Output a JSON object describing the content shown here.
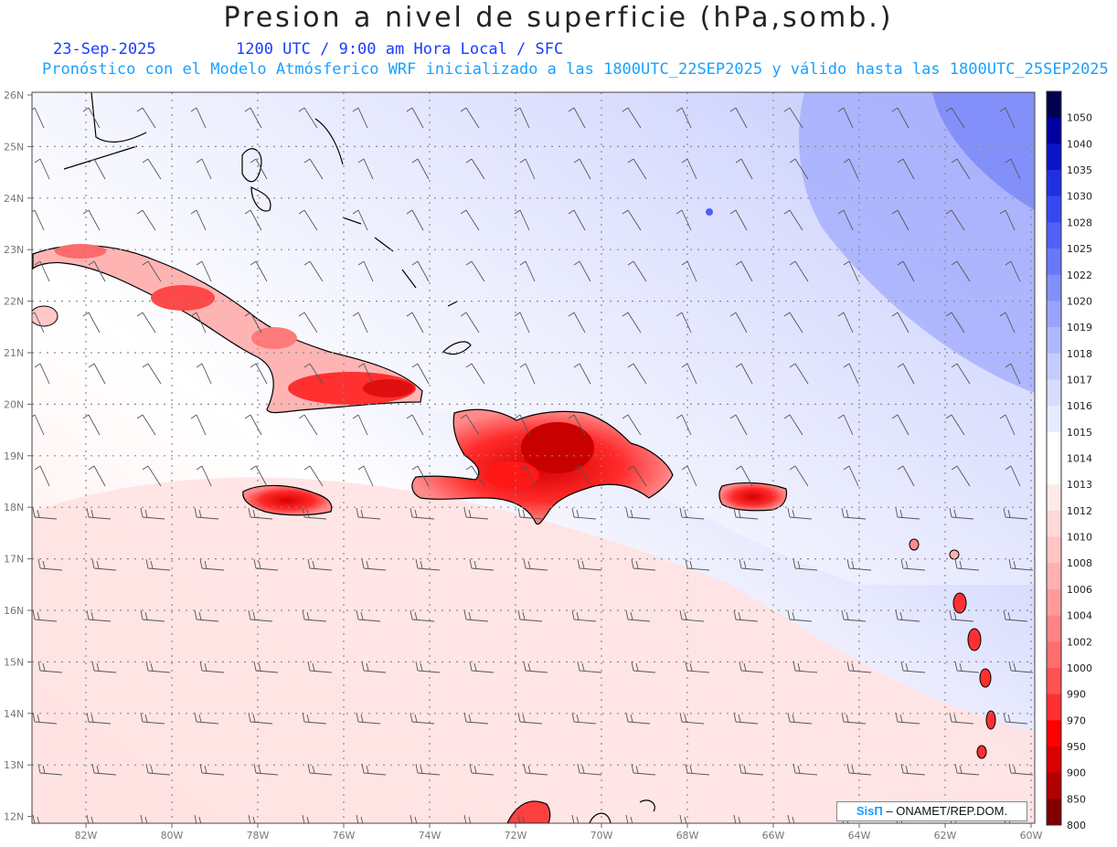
{
  "header": {
    "title": "Presion a nivel de superficie (hPa,somb.)",
    "date": "23-Sep-2025",
    "time_info": "1200 UTC / 9:00 am Hora Local / SFC",
    "forecast_info": "Pronóstico con el Modelo Atmósferico WRF inicializado a las 1800UTC_22SEP2025 y válido hasta las  1800UTC_25SEP2025"
  },
  "map": {
    "lat_labels": [
      "26N",
      "25N",
      "24N",
      "23N",
      "22N",
      "21N",
      "20N",
      "19N",
      "18N",
      "17N",
      "16N",
      "15N",
      "14N",
      "13N",
      "12N"
    ],
    "lon_labels": [
      "82W",
      "80W",
      "78W",
      "76W",
      "74W",
      "72W",
      "70W",
      "68W",
      "66W",
      "64W",
      "62W",
      "60W"
    ]
  },
  "colorbar": {
    "labels": [
      "1050",
      "1040",
      "1035",
      "1030",
      "1028",
      "1025",
      "1022",
      "1020",
      "1019",
      "1018",
      "1017",
      "1016",
      "1015",
      "1014",
      "1013",
      "1012",
      "1010",
      "1008",
      "1006",
      "1004",
      "1002",
      "1000",
      "990",
      "970",
      "950",
      "900",
      "850",
      "800"
    ],
    "colors": [
      "#000050",
      "#0000a0",
      "#0a14c8",
      "#2030e0",
      "#3848f0",
      "#5060f8",
      "#6878fa",
      "#8090fb",
      "#98a4fc",
      "#b0b8fd",
      "#c4ccfd",
      "#d8dcfe",
      "#e8ebff",
      "#ffffff",
      "#ffffff",
      "#ffeaea",
      "#ffd8d8",
      "#ffc4c4",
      "#ffb0b0",
      "#ff9a9a",
      "#ff8484",
      "#ff6e6e",
      "#ff5252",
      "#ff3030",
      "#ff0000",
      "#d80000",
      "#b00000",
      "#800000"
    ]
  },
  "credit": {
    "brand": "SisΠ",
    "text": "– ONAMET/REP.DOM."
  }
}
